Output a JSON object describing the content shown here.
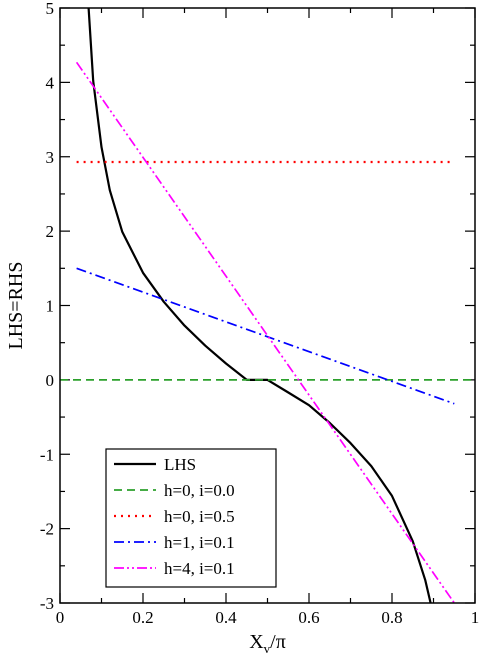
{
  "chart_data": {
    "type": "line",
    "xlabel": "X",
    "xlabel_sub": "v",
    "xlabel_suffix": "/π",
    "ylabel": "LHS=RHS",
    "xlim": [
      0,
      1
    ],
    "ylim": [
      -3,
      5
    ],
    "xticks": [
      0,
      0.2,
      0.4,
      0.6,
      0.8,
      1
    ],
    "xtick_labels": [
      "0",
      "0.2",
      "0.4",
      "0.6",
      "0.8",
      "1"
    ],
    "yticks": [
      -3,
      -2,
      -1,
      0,
      1,
      2,
      3,
      4,
      5
    ],
    "ytick_labels": [
      "-3",
      "-2",
      "-1",
      "0",
      "1",
      "2",
      "3",
      "4",
      "5"
    ],
    "grid": false,
    "legend_position": "bottom-left",
    "series": [
      {
        "name": "LHS",
        "color": "#000000",
        "dash": "solid",
        "x": [
          0.069,
          0.08,
          0.1,
          0.12,
          0.15,
          0.2,
          0.25,
          0.3,
          0.35,
          0.4,
          0.45,
          0.5,
          0.55,
          0.6,
          0.65,
          0.7,
          0.75,
          0.8,
          0.85,
          0.88,
          0.893
        ],
        "y": [
          5.0,
          4.02,
          3.13,
          2.55,
          1.99,
          1.44,
          1.05,
          0.73,
          0.46,
          0.22,
          0.0,
          0.0,
          -0.17,
          -0.34,
          -0.58,
          -0.85,
          -1.16,
          -1.56,
          -2.17,
          -2.69,
          -3.0
        ]
      },
      {
        "name": "h=0, i=0.0",
        "color": "#2ca02c",
        "dash": "dashed",
        "x": [
          0.0,
          1.0
        ],
        "y": [
          0.0,
          0.0
        ]
      },
      {
        "name": "h=0, i=0.5",
        "color": "#ff0000",
        "dash": "dotted",
        "x": [
          0.04,
          0.95
        ],
        "y": [
          2.93,
          2.93
        ]
      },
      {
        "name": "h=1, i=0.1",
        "color": "#0000ff",
        "dash": "dashdot",
        "x": [
          0.04,
          0.95
        ],
        "y": [
          1.5,
          -0.32
        ]
      },
      {
        "name": "h=4, i=0.1",
        "color": "#ff00ff",
        "dash": "dashdotdot",
        "x": [
          0.04,
          0.95
        ],
        "y": [
          4.27,
          -3.0
        ]
      }
    ]
  }
}
